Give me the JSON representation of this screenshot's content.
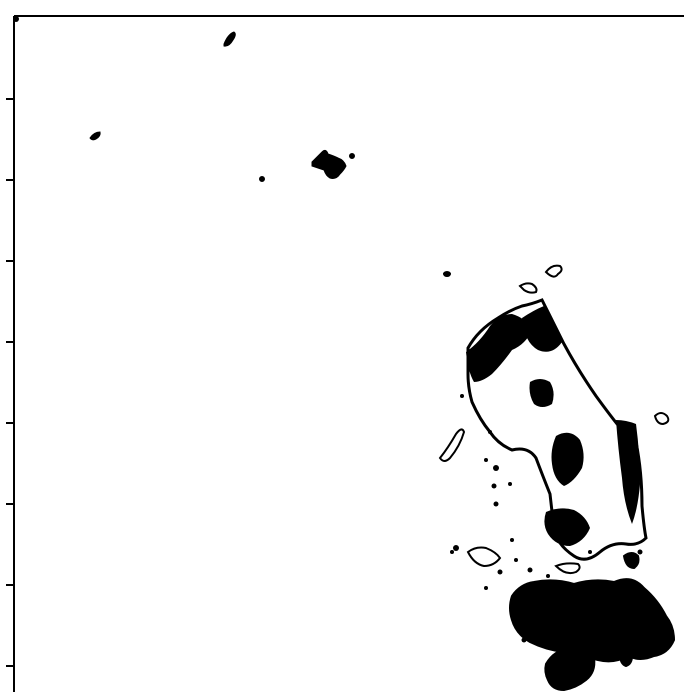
{
  "map": {
    "frame_color": "#000000",
    "land_stroke_color": "#000000",
    "land_fill_color": "#ffffff",
    "dense_detail_color": "#000000",
    "axis": {
      "left_tick_count": 8,
      "tick_labels": []
    }
  }
}
